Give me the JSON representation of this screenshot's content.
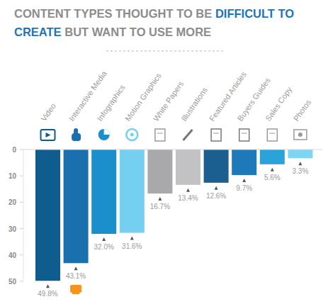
{
  "chart_data": {
    "type": "bar",
    "title": "CONTENT TYPES THOUGHT TO BE DIFFICULT TO CREATE BUT WANT TO USE MORE",
    "title_highlight": "DIFFICULT TO CREATE",
    "categories": [
      "Video",
      "Interactive Media",
      "Infographics",
      "Motion Graphics",
      "White Papers",
      "Illustrations",
      "Featured Articles",
      "Buyers Guides",
      "Sales Copy",
      "Photos"
    ],
    "values": [
      49.8,
      43.1,
      32.0,
      31.6,
      16.7,
      13.4,
      12.6,
      9.7,
      5.6,
      3.3
    ],
    "value_labels": [
      "49.8%",
      "43.1%",
      "32.0%",
      "31.6%",
      "16.7%",
      "13.4%",
      "12.6%",
      "9.7%",
      "5.6%",
      "3.3%"
    ],
    "colors": [
      "#0f5c8e",
      "#1a6fae",
      "#1a8fcb",
      "#74cff1",
      "#a9a9ab",
      "#c2c2c4",
      "#1b5f91",
      "#1d79b9",
      "#2aa2da",
      "#7dd4f3"
    ],
    "ylim": [
      0,
      50
    ],
    "yticks": [
      0,
      10,
      20,
      30,
      40,
      50
    ],
    "grid": false,
    "data_labels": true
  }
}
